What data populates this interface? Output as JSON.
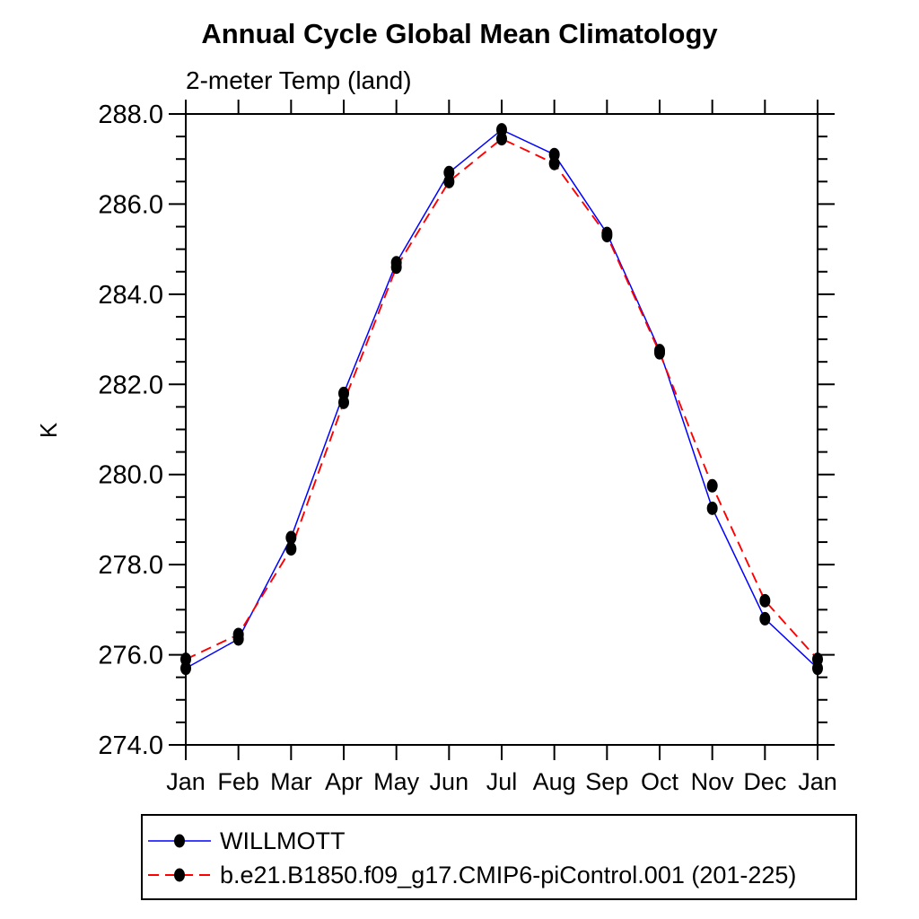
{
  "chart": {
    "title": "Annual Cycle Global Mean Climatology",
    "subtitle": "2-meter Temp (land)",
    "ylabel": "K"
  },
  "chart_data": {
    "type": "line",
    "title": "Annual Cycle Global Mean Climatology",
    "subtitle": "2-meter Temp (land)",
    "xlabel": "",
    "ylabel": "K",
    "categories": [
      "Jan",
      "Feb",
      "Mar",
      "Apr",
      "May",
      "Jun",
      "Jul",
      "Aug",
      "Sep",
      "Oct",
      "Nov",
      "Dec",
      "Jan"
    ],
    "ylim": [
      274.0,
      288.0
    ],
    "ytick_step": 2.0,
    "yminor_step": 0.5,
    "ytick_labels": [
      "274.0",
      "276.0",
      "278.0",
      "280.0",
      "282.0",
      "284.0",
      "286.0",
      "288.0"
    ],
    "grid": false,
    "legend_position": "bottom-left-box",
    "axis_color": "#000000",
    "marker_shape": "filled-circle",
    "series": [
      {
        "name": "WILLMOTT",
        "color": "#0000ff",
        "line_style": "solid",
        "marker_color": "#000000",
        "values": [
          275.7,
          276.35,
          278.6,
          281.8,
          284.7,
          286.7,
          287.65,
          287.1,
          285.35,
          282.75,
          279.25,
          276.8,
          275.7
        ]
      },
      {
        "name": "b.e21.B1850.f09_g17.CMIP6-piControl.001 (201-225)",
        "color": "#ff0000",
        "line_style": "dashed",
        "marker_color": "#000000",
        "values": [
          275.9,
          276.45,
          278.35,
          281.6,
          284.6,
          286.5,
          287.45,
          286.9,
          285.3,
          282.7,
          279.75,
          277.2,
          275.9
        ]
      }
    ]
  }
}
